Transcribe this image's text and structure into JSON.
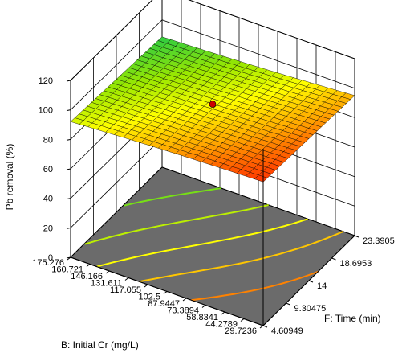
{
  "chart_data": {
    "type": "surface",
    "title": "",
    "xlabel": "B: Initial Cr (mg/L)",
    "ylabel": "F: Time (min)",
    "zlabel": "Pb removal (%)",
    "x_ticks": [
      "29.7236",
      "44.2789",
      "58.8341",
      "73.3894",
      "87.9447",
      "102.5",
      "117.055",
      "131.611",
      "146.166",
      "160.721",
      "175.276"
    ],
    "y_ticks": [
      "4.60949",
      "9.30475",
      "14",
      "18.6953",
      "23.3905"
    ],
    "z_ticks": [
      "0",
      "20",
      "40",
      "60",
      "80",
      "100",
      "120"
    ],
    "x_range": [
      29.7236,
      175.276
    ],
    "y_range": [
      4.60949,
      23.3905
    ],
    "z_range": [
      0,
      120
    ],
    "grid": true,
    "surface": {
      "x_low_y_low": 97.5,
      "x_low_y_high": 95.0,
      "x_high_y_low": 92.0,
      "x_high_y_high": 88.5,
      "color_scale": [
        "#2ecc40",
        "#9be800",
        "#ffff00",
        "#ffaa00",
        "#ff3300"
      ]
    },
    "design_point": {
      "x": 102.5,
      "y": 14,
      "z": 96.5,
      "color": "#cc0000"
    },
    "floor_color": "#6b6b6b"
  }
}
